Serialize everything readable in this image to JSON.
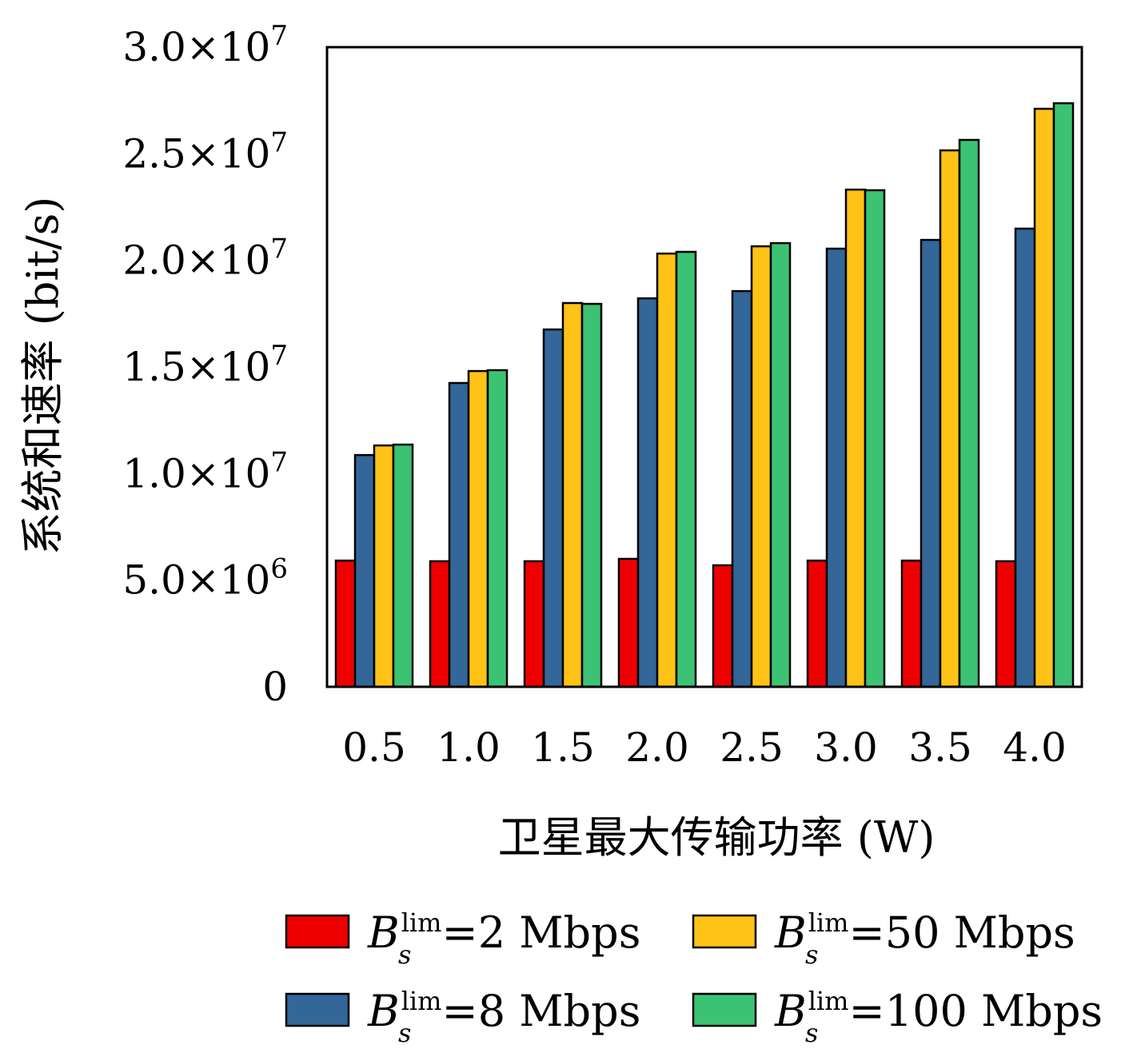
{
  "chart_data": {
    "type": "bar",
    "title": "",
    "xlabel": "卫星最大传输功率 (W)",
    "ylabel": "系统和速率 (bit/s)",
    "categories": [
      "0.5",
      "1.0",
      "1.5",
      "2.0",
      "2.5",
      "3.0",
      "3.5",
      "4.0"
    ],
    "ylim": [
      0,
      30000000
    ],
    "yticks": [
      {
        "value": 0,
        "base": "0",
        "exp": ""
      },
      {
        "value": 5000000,
        "base": "5.0×10",
        "exp": "6"
      },
      {
        "value": 10000000,
        "base": "1.0×10",
        "exp": "7"
      },
      {
        "value": 15000000,
        "base": "1.5×10",
        "exp": "7"
      },
      {
        "value": 20000000,
        "base": "2.0×10",
        "exp": "7"
      },
      {
        "value": 25000000,
        "base": "2.5×10",
        "exp": "7"
      },
      {
        "value": 30000000,
        "base": "3.0×10",
        "exp": "7"
      }
    ],
    "grid": false,
    "legend_position": "bottom",
    "series": [
      {
        "name": "B_s^lim=2 Mbps",
        "sym": "B",
        "sub": "s",
        "sup": "lim",
        "text": "=2 Mbps",
        "color": "#ee0000",
        "values": [
          5920000,
          5890000,
          5890000,
          6000000,
          5700000,
          5920000,
          5920000,
          5890000
        ]
      },
      {
        "name": "B_s^lim=8 Mbps",
        "sym": "B",
        "sub": "s",
        "sup": "lim",
        "text": "=8 Mbps",
        "color": "#336699",
        "values": [
          10870000,
          14250000,
          16760000,
          18220000,
          18560000,
          20550000,
          20960000,
          21490000
        ]
      },
      {
        "name": "B_s^lim=50 Mbps",
        "sym": "B",
        "sub": "s",
        "sup": "lim",
        "text": "=50 Mbps",
        "color": "#ffc217",
        "values": [
          11320000,
          14810000,
          18000000,
          20320000,
          20660000,
          23320000,
          25160000,
          27110000
        ]
      },
      {
        "name": "B_s^lim=100 Mbps",
        "sym": "B",
        "sub": "s",
        "sup": "lim",
        "text": "=100 Mbps",
        "color": "#3cc273",
        "values": [
          11360000,
          14850000,
          17960000,
          20400000,
          20810000,
          23290000,
          25650000,
          27370000
        ]
      }
    ]
  }
}
